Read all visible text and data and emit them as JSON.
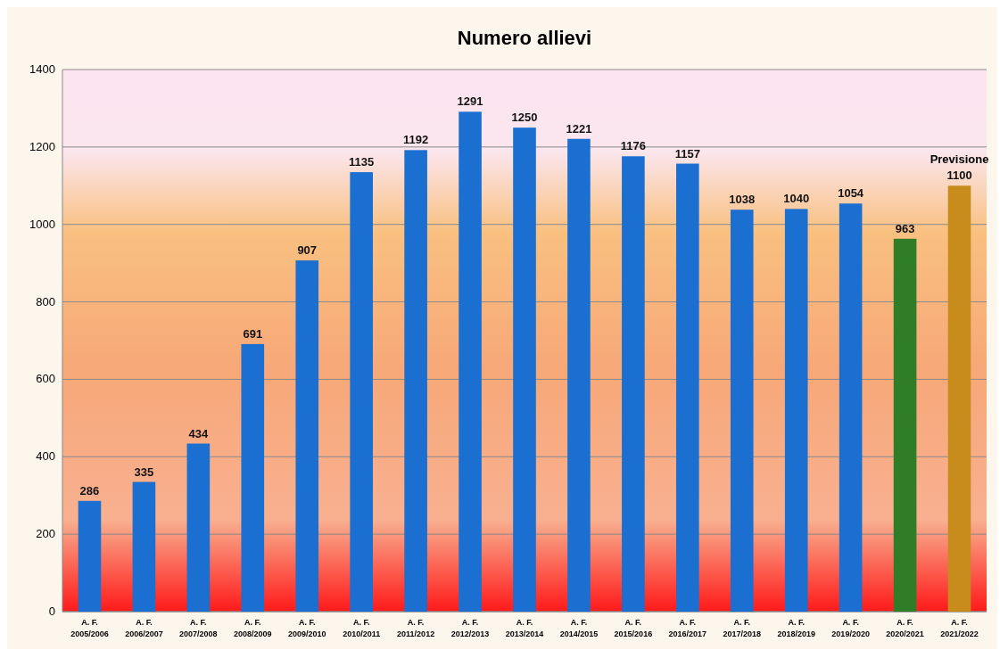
{
  "chart_data": {
    "type": "bar",
    "title": "Numero allievi",
    "categories": [
      "A. F. 2005/2006",
      "A. F. 2006/2007",
      "A. F. 2007/2008",
      "A. F. 2008/2009",
      "A. F. 2009/2010",
      "A. F. 2010/2011",
      "A. F. 2011/2012",
      "A. F. 2012/2013",
      "A. F. 2013/2014",
      "A. F. 2014/2015",
      "A. F. 2015/2016",
      "A. F. 2016/2017",
      "A. F. 2017/2018",
      "A. F. 2018/2019",
      "A. F. 2019/2020",
      "A. F. 2020/2021",
      "A. F. 2021/2022"
    ],
    "values": [
      286,
      335,
      434,
      691,
      907,
      1135,
      1192,
      1291,
      1250,
      1221,
      1176,
      1157,
      1038,
      1040,
      1054,
      963,
      1100
    ],
    "colors": [
      "#1a6fd0",
      "#1a6fd0",
      "#1a6fd0",
      "#1a6fd0",
      "#1a6fd0",
      "#1a6fd0",
      "#1a6fd0",
      "#1a6fd0",
      "#1a6fd0",
      "#1a6fd0",
      "#1a6fd0",
      "#1a6fd0",
      "#1a6fd0",
      "#1a6fd0",
      "#1a6fd0",
      "#2f7d26",
      "#c88c1c"
    ],
    "ylim": [
      0,
      1400
    ],
    "yticks": [
      0,
      200,
      400,
      600,
      800,
      1000,
      1200,
      1400
    ],
    "grid": "y",
    "data_labels": true,
    "annotations": [
      {
        "text": "Previsione",
        "x": "A. F. 2021/2022",
        "y": 1100
      }
    ]
  }
}
